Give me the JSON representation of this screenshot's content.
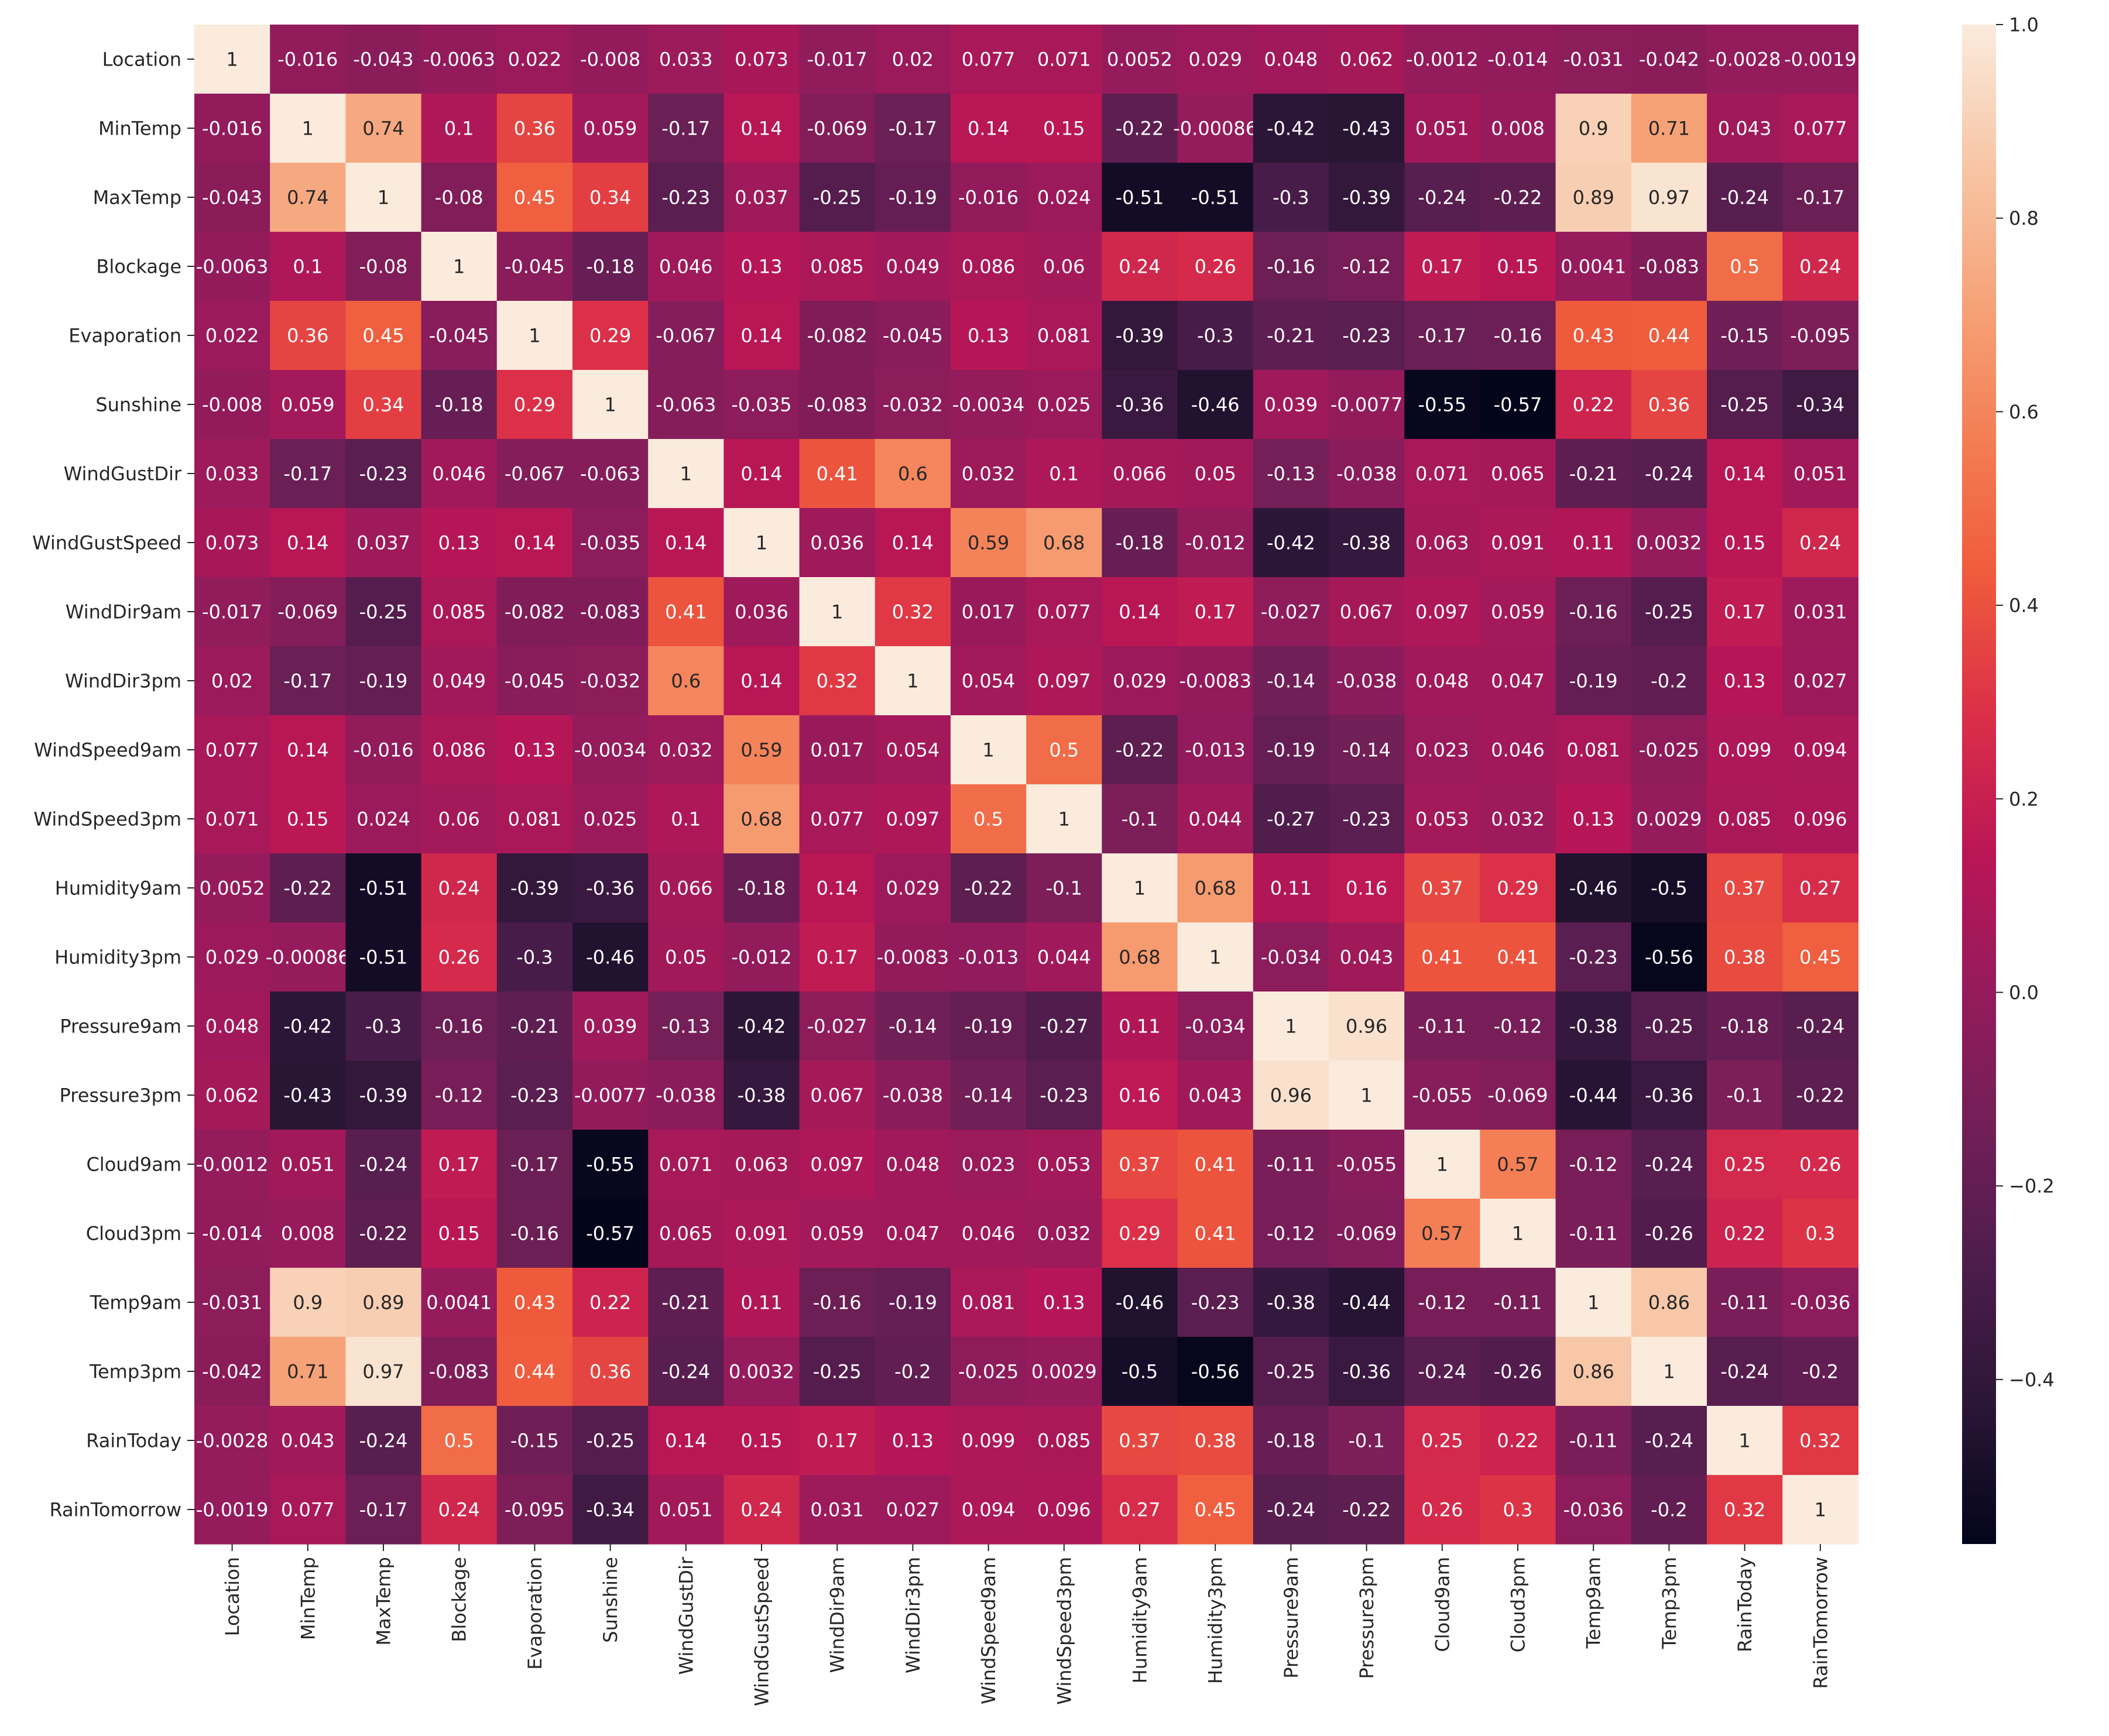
{
  "chart_data": {
    "type": "heatmap",
    "title": "",
    "xlabel": "",
    "ylabel": "",
    "labels": [
      "Location",
      "MinTemp",
      "MaxTemp",
      "Blockage",
      "Evaporation",
      "Sunshine",
      "WindGustDir",
      "WindGustSpeed",
      "WindDir9am",
      "WindDir3pm",
      "WindSpeed9am",
      "WindSpeed3pm",
      "Humidity9am",
      "Humidity3pm",
      "Pressure9am",
      "Pressure3pm",
      "Cloud9am",
      "Cloud3pm",
      "Temp9am",
      "Temp3pm",
      "RainToday",
      "RainTomorrow"
    ],
    "matrix": [
      [
        "1",
        "-0.016",
        "-0.043",
        "-0.0063",
        "0.022",
        "-0.008",
        "0.033",
        "0.073",
        "-0.017",
        "0.02",
        "0.077",
        "0.071",
        "0.0052",
        "0.029",
        "0.048",
        "0.062",
        "-0.0012",
        "-0.014",
        "-0.031",
        "-0.042",
        "-0.0028",
        "-0.0019"
      ],
      [
        "-0.016",
        "1",
        "0.74",
        "0.1",
        "0.36",
        "0.059",
        "-0.17",
        "0.14",
        "-0.069",
        "-0.17",
        "0.14",
        "0.15",
        "-0.22",
        "-0.00086",
        "-0.42",
        "-0.43",
        "0.051",
        "0.008",
        "0.9",
        "0.71",
        "0.043",
        "0.077"
      ],
      [
        "-0.043",
        "0.74",
        "1",
        "-0.08",
        "0.45",
        "0.34",
        "-0.23",
        "0.037",
        "-0.25",
        "-0.19",
        "-0.016",
        "0.024",
        "-0.51",
        "-0.51",
        "-0.3",
        "-0.39",
        "-0.24",
        "-0.22",
        "0.89",
        "0.97",
        "-0.24",
        "-0.17"
      ],
      [
        "-0.0063",
        "0.1",
        "-0.08",
        "1",
        "-0.045",
        "-0.18",
        "0.046",
        "0.13",
        "0.085",
        "0.049",
        "0.086",
        "0.06",
        "0.24",
        "0.26",
        "-0.16",
        "-0.12",
        "0.17",
        "0.15",
        "0.0041",
        "-0.083",
        "0.5",
        "0.24"
      ],
      [
        "0.022",
        "0.36",
        "0.45",
        "-0.045",
        "1",
        "0.29",
        "-0.067",
        "0.14",
        "-0.082",
        "-0.045",
        "0.13",
        "0.081",
        "-0.39",
        "-0.3",
        "-0.21",
        "-0.23",
        "-0.17",
        "-0.16",
        "0.43",
        "0.44",
        "-0.15",
        "-0.095"
      ],
      [
        "-0.008",
        "0.059",
        "0.34",
        "-0.18",
        "0.29",
        "1",
        "-0.063",
        "-0.035",
        "-0.083",
        "-0.032",
        "-0.0034",
        "0.025",
        "-0.36",
        "-0.46",
        "0.039",
        "-0.0077",
        "-0.55",
        "-0.57",
        "0.22",
        "0.36",
        "-0.25",
        "-0.34"
      ],
      [
        "0.033",
        "-0.17",
        "-0.23",
        "0.046",
        "-0.067",
        "-0.063",
        "1",
        "0.14",
        "0.41",
        "0.6",
        "0.032",
        "0.1",
        "0.066",
        "0.05",
        "-0.13",
        "-0.038",
        "0.071",
        "0.065",
        "-0.21",
        "-0.24",
        "0.14",
        "0.051"
      ],
      [
        "0.073",
        "0.14",
        "0.037",
        "0.13",
        "0.14",
        "-0.035",
        "0.14",
        "1",
        "0.036",
        "0.14",
        "0.59",
        "0.68",
        "-0.18",
        "-0.012",
        "-0.42",
        "-0.38",
        "0.063",
        "0.091",
        "0.11",
        "0.0032",
        "0.15",
        "0.24"
      ],
      [
        "-0.017",
        "-0.069",
        "-0.25",
        "0.085",
        "-0.082",
        "-0.083",
        "0.41",
        "0.036",
        "1",
        "0.32",
        "0.017",
        "0.077",
        "0.14",
        "0.17",
        "-0.027",
        "0.067",
        "0.097",
        "0.059",
        "-0.16",
        "-0.25",
        "0.17",
        "0.031"
      ],
      [
        "0.02",
        "-0.17",
        "-0.19",
        "0.049",
        "-0.045",
        "-0.032",
        "0.6",
        "0.14",
        "0.32",
        "1",
        "0.054",
        "0.097",
        "0.029",
        "-0.0083",
        "-0.14",
        "-0.038",
        "0.048",
        "0.047",
        "-0.19",
        "-0.2",
        "0.13",
        "0.027"
      ],
      [
        "0.077",
        "0.14",
        "-0.016",
        "0.086",
        "0.13",
        "-0.0034",
        "0.032",
        "0.59",
        "0.017",
        "0.054",
        "1",
        "0.5",
        "-0.22",
        "-0.013",
        "-0.19",
        "-0.14",
        "0.023",
        "0.046",
        "0.081",
        "-0.025",
        "0.099",
        "0.094"
      ],
      [
        "0.071",
        "0.15",
        "0.024",
        "0.06",
        "0.081",
        "0.025",
        "0.1",
        "0.68",
        "0.077",
        "0.097",
        "0.5",
        "1",
        "-0.1",
        "0.044",
        "-0.27",
        "-0.23",
        "0.053",
        "0.032",
        "0.13",
        "0.0029",
        "0.085",
        "0.096"
      ],
      [
        "0.0052",
        "-0.22",
        "-0.51",
        "0.24",
        "-0.39",
        "-0.36",
        "0.066",
        "-0.18",
        "0.14",
        "0.029",
        "-0.22",
        "-0.1",
        "1",
        "0.68",
        "0.11",
        "0.16",
        "0.37",
        "0.29",
        "-0.46",
        "-0.5",
        "0.37",
        "0.27"
      ],
      [
        "0.029",
        "-0.00086",
        "-0.51",
        "0.26",
        "-0.3",
        "-0.46",
        "0.05",
        "-0.012",
        "0.17",
        "-0.0083",
        "-0.013",
        "0.044",
        "0.68",
        "1",
        "-0.034",
        "0.043",
        "0.41",
        "0.41",
        "-0.23",
        "-0.56",
        "0.38",
        "0.45"
      ],
      [
        "0.048",
        "-0.42",
        "-0.3",
        "-0.16",
        "-0.21",
        "0.039",
        "-0.13",
        "-0.42",
        "-0.027",
        "-0.14",
        "-0.19",
        "-0.27",
        "0.11",
        "-0.034",
        "1",
        "0.96",
        "-0.11",
        "-0.12",
        "-0.38",
        "-0.25",
        "-0.18",
        "-0.24"
      ],
      [
        "0.062",
        "-0.43",
        "-0.39",
        "-0.12",
        "-0.23",
        "-0.0077",
        "-0.038",
        "-0.38",
        "0.067",
        "-0.038",
        "-0.14",
        "-0.23",
        "0.16",
        "0.043",
        "0.96",
        "1",
        "-0.055",
        "-0.069",
        "-0.44",
        "-0.36",
        "-0.1",
        "-0.22"
      ],
      [
        "-0.0012",
        "0.051",
        "-0.24",
        "0.17",
        "-0.17",
        "-0.55",
        "0.071",
        "0.063",
        "0.097",
        "0.048",
        "0.023",
        "0.053",
        "0.37",
        "0.41",
        "-0.11",
        "-0.055",
        "1",
        "0.57",
        "-0.12",
        "-0.24",
        "0.25",
        "0.26"
      ],
      [
        "-0.014",
        "0.008",
        "-0.22",
        "0.15",
        "-0.16",
        "-0.57",
        "0.065",
        "0.091",
        "0.059",
        "0.047",
        "0.046",
        "0.032",
        "0.29",
        "0.41",
        "-0.12",
        "-0.069",
        "0.57",
        "1",
        "-0.11",
        "-0.26",
        "0.22",
        "0.3"
      ],
      [
        "-0.031",
        "0.9",
        "0.89",
        "0.0041",
        "0.43",
        "0.22",
        "-0.21",
        "0.11",
        "-0.16",
        "-0.19",
        "0.081",
        "0.13",
        "-0.46",
        "-0.23",
        "-0.38",
        "-0.44",
        "-0.12",
        "-0.11",
        "1",
        "0.86",
        "-0.11",
        "-0.036"
      ],
      [
        "-0.042",
        "0.71",
        "0.97",
        "-0.083",
        "0.44",
        "0.36",
        "-0.24",
        "0.0032",
        "-0.25",
        "-0.2",
        "-0.025",
        "0.0029",
        "-0.5",
        "-0.56",
        "-0.25",
        "-0.36",
        "-0.24",
        "-0.26",
        "0.86",
        "1",
        "-0.24",
        "-0.2"
      ],
      [
        "-0.0028",
        "0.043",
        "-0.24",
        "0.5",
        "-0.15",
        "-0.25",
        "0.14",
        "0.15",
        "0.17",
        "0.13",
        "0.099",
        "0.085",
        "0.37",
        "0.38",
        "-0.18",
        "-0.1",
        "0.25",
        "0.22",
        "-0.11",
        "-0.24",
        "1",
        "0.32"
      ],
      [
        "-0.0019",
        "0.077",
        "-0.17",
        "0.24",
        "-0.095",
        "-0.34",
        "0.051",
        "0.24",
        "0.031",
        "0.027",
        "0.094",
        "0.096",
        "0.27",
        "0.45",
        "-0.24",
        "-0.22",
        "0.26",
        "0.3",
        "-0.036",
        "-0.2",
        "0.32",
        "1"
      ]
    ],
    "colorbar": {
      "vmin": -0.57,
      "vmax": 1.0,
      "ticks": [
        1.0,
        0.8,
        0.6,
        0.4,
        0.2,
        0.0,
        -0.2,
        -0.4
      ],
      "tick_labels": [
        "1.0",
        "0.8",
        "0.6",
        "0.4",
        "0.2",
        "0.0",
        "−0.2",
        "−0.4"
      ],
      "colormap": "rocket",
      "colormap_stops": [
        "#03051a",
        "#2a1636",
        "#4c1d4b",
        "#711f57",
        "#951b5c",
        "#ba1656",
        "#db2f48",
        "#ef5a3c",
        "#f47e55",
        "#f6a379",
        "#f7c6a6",
        "#faebdd"
      ]
    },
    "grid": false,
    "legend": "colorbar-right"
  }
}
